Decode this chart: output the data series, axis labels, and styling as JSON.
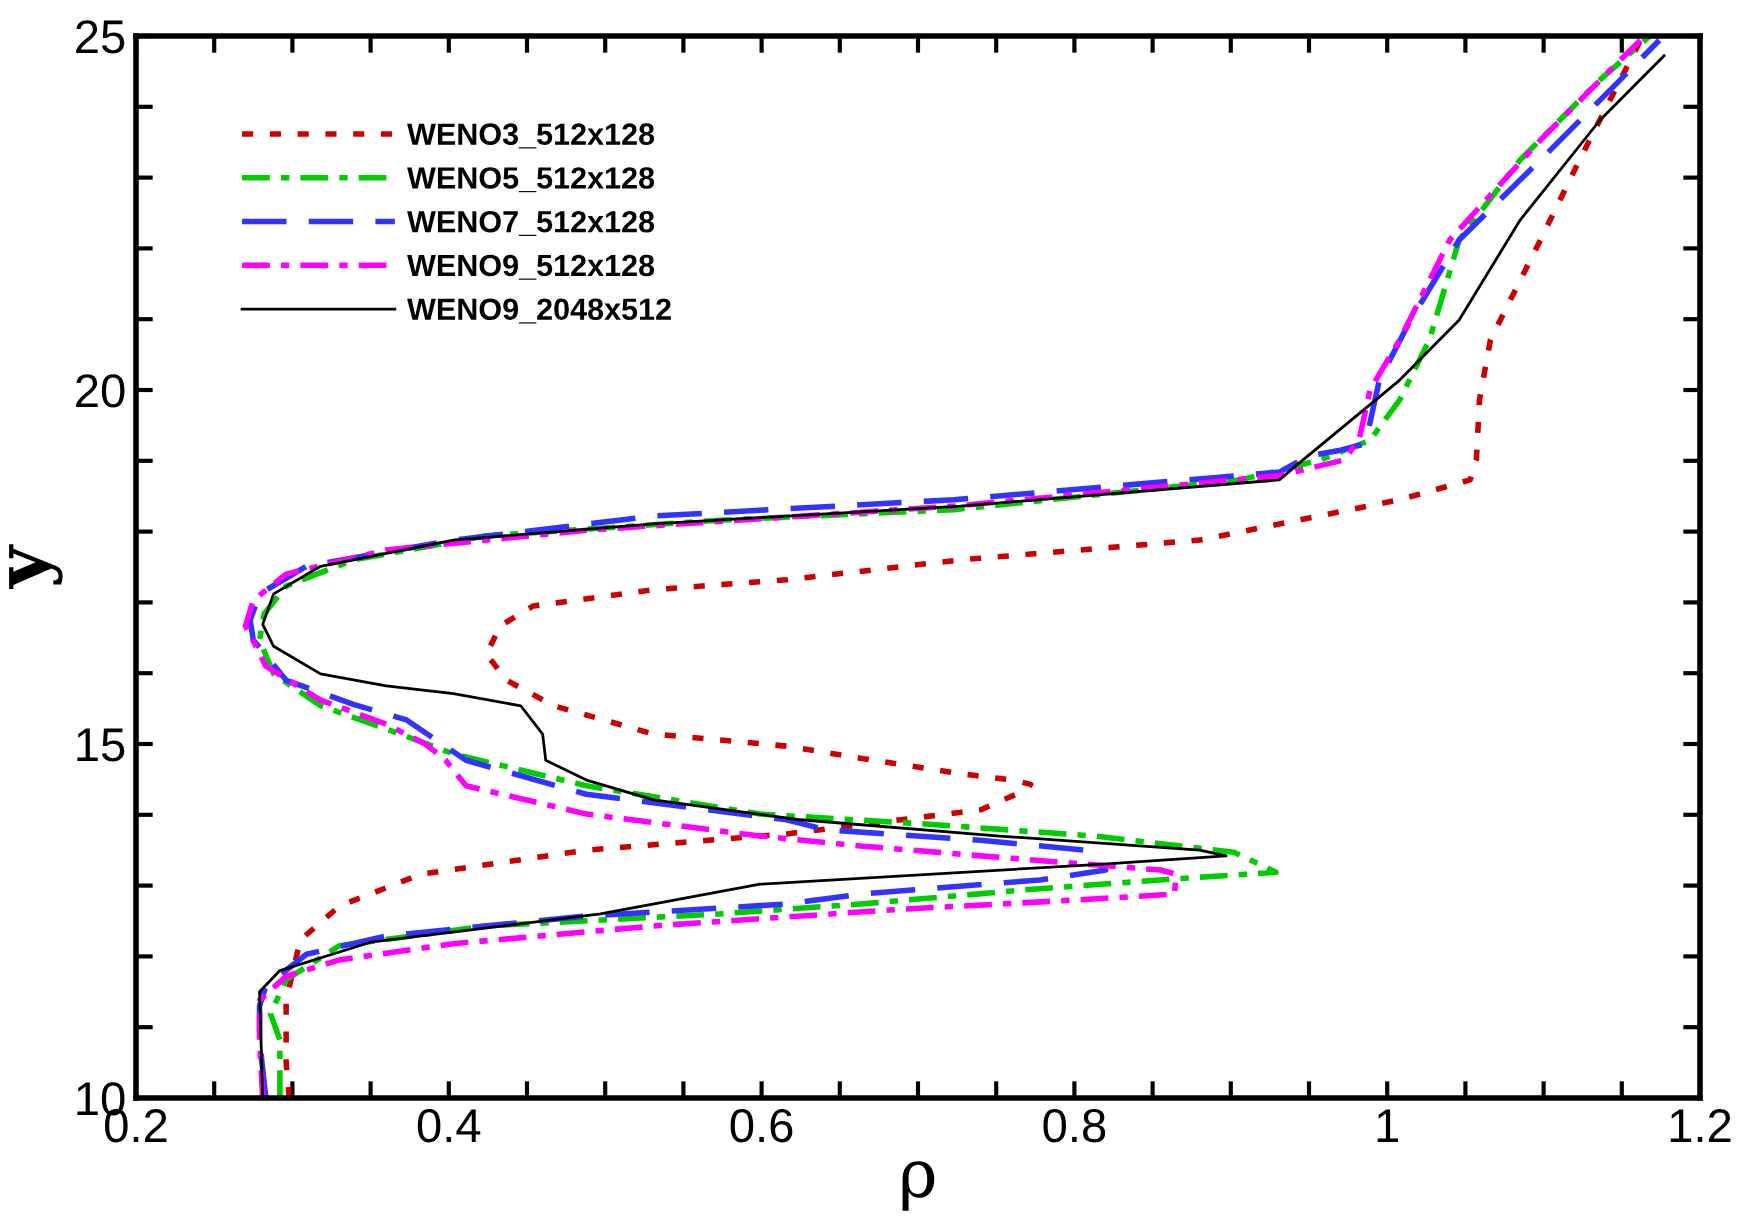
{
  "chart_data": {
    "type": "line",
    "xlabel": "ρ",
    "ylabel": "y",
    "xlim": [
      0.2,
      1.2
    ],
    "ylim": [
      10,
      25
    ],
    "xticks": [
      0.2,
      {
        "value": 0.25,
        "label": null
      },
      {
        "value": 0.3,
        "label": null
      },
      {
        "value": 0.35,
        "label": null
      },
      0.4,
      {
        "value": 0.45,
        "label": null
      },
      {
        "value": 0.5,
        "label": null
      },
      {
        "value": 0.55,
        "label": null
      },
      0.6,
      {
        "value": 0.65,
        "label": null
      },
      {
        "value": 0.7,
        "label": null
      },
      {
        "value": 0.75,
        "label": null
      },
      0.8,
      {
        "value": 0.85,
        "label": null
      },
      {
        "value": 0.9,
        "label": null
      },
      {
        "value": 0.95,
        "label": null
      },
      1,
      {
        "value": 1.05,
        "label": null
      },
      {
        "value": 1.1,
        "label": null
      },
      {
        "value": 1.15,
        "label": null
      },
      1.2
    ],
    "yticks": [
      10,
      {
        "value": 11,
        "label": null
      },
      {
        "value": 12,
        "label": null
      },
      {
        "value": 13,
        "label": null
      },
      {
        "value": 14,
        "label": null
      },
      15,
      {
        "value": 16,
        "label": null
      },
      {
        "value": 17,
        "label": null
      },
      {
        "value": 18,
        "label": null
      },
      {
        "value": 19,
        "label": null
      },
      20,
      {
        "value": 21,
        "label": null
      },
      {
        "value": 22,
        "label": null
      },
      {
        "value": 23,
        "label": null
      },
      {
        "value": 24,
        "label": null
      },
      25
    ],
    "grid": false,
    "legend": "top left",
    "marker": "none",
    "series": [
      {
        "name": "WENO3_512x128",
        "color": "#cc0000",
        "line_style": "dotted",
        "x": [
          0.298,
          0.296,
          0.296,
          0.305,
          0.33,
          0.382,
          0.488,
          0.616,
          0.74,
          0.769,
          0.772,
          0.761,
          0.727,
          0.663,
          0.616,
          0.531,
          0.467,
          0.437,
          0.424,
          0.433,
          0.454,
          0.531,
          0.616,
          0.727,
          0.88,
          1.008,
          1.053,
          1.057,
          1.059,
          1.066,
          1.098,
          1.123,
          1.149,
          1.162
        ],
        "values": [
          10,
          10.5,
          11.38,
          12.23,
          12.71,
          13.16,
          13.5,
          13.73,
          14.07,
          14.35,
          14.43,
          14.49,
          14.58,
          14.8,
          14.97,
          15.14,
          15.54,
          15.9,
          16.27,
          16.67,
          16.95,
          17.18,
          17.32,
          17.6,
          17.88,
          18.45,
          18.73,
          19.01,
          19.86,
          20.71,
          22.12,
          23.25,
          24.38,
          24.94
        ]
      },
      {
        "name": "WENO5_512x128",
        "color": "#00cc00",
        "line_style": "dash-dot",
        "x": [
          0.292,
          0.292,
          0.286,
          0.296,
          0.33,
          0.424,
          0.573,
          0.663,
          0.769,
          0.855,
          0.929,
          0.902,
          0.813,
          0.705,
          0.599,
          0.488,
          0.403,
          0.369,
          0.318,
          0.288,
          0.279,
          0.282,
          0.296,
          0.339,
          0.424,
          0.573,
          0.723,
          0.906,
          0.957,
          0.989,
          1.008,
          1.027,
          1.046,
          1.085,
          1.136,
          1.168
        ],
        "values": [
          10,
          10.82,
          11.19,
          11.67,
          12.15,
          12.43,
          12.6,
          12.74,
          12.94,
          13.08,
          13.19,
          13.47,
          13.7,
          13.87,
          14.01,
          14.41,
          14.86,
          15.14,
          15.54,
          15.99,
          16.47,
          16.84,
          17.23,
          17.6,
          17.94,
          18.16,
          18.31,
          18.73,
          19.01,
          19.29,
          19.86,
          20.71,
          22.12,
          23.25,
          24.38,
          25
        ]
      },
      {
        "name": "WENO7_512x128",
        "color": "#3333ff",
        "line_style": "dashed",
        "x": [
          0.283,
          0.279,
          0.279,
          0.283,
          0.309,
          0.36,
          0.488,
          0.616,
          0.663,
          0.778,
          0.82,
          0.807,
          0.74,
          0.641,
          0.616,
          0.488,
          0.411,
          0.373,
          0.339,
          0.296,
          0.275,
          0.273,
          0.279,
          0.309,
          0.403,
          0.531,
          0.723,
          0.931,
          0.95,
          0.97,
          0.986,
          0.995,
          1.015,
          1.046,
          1.098,
          1.149,
          1.174
        ],
        "values": [
          10,
          10.82,
          11.3,
          11.58,
          12.03,
          12.29,
          12.57,
          12.74,
          12.88,
          13.08,
          13.22,
          13.5,
          13.64,
          13.79,
          13.93,
          14.29,
          14.77,
          15.34,
          15.56,
          15.9,
          16.47,
          16.75,
          17.12,
          17.51,
          17.88,
          18.22,
          18.45,
          18.84,
          19.07,
          19.15,
          19.24,
          20.14,
          20.99,
          22.12,
          23.25,
          24.38,
          24.94
        ]
      },
      {
        "name": "WENO9_512x128",
        "color": "#ff00ff",
        "line_style": "dash-dot",
        "x": [
          0.281,
          0.279,
          0.279,
          0.296,
          0.33,
          0.403,
          0.531,
          0.685,
          0.804,
          0.864,
          0.865,
          0.855,
          0.74,
          0.663,
          0.599,
          0.488,
          0.411,
          0.398,
          0.385,
          0.36,
          0.318,
          0.283,
          0.27,
          0.275,
          0.296,
          0.36,
          0.488,
          0.723,
          0.931,
          0.972,
          0.982,
          0.989,
          1.008,
          1.04,
          1.098,
          1.149,
          1.162
        ],
        "values": [
          10,
          10.82,
          11.38,
          11.72,
          11.95,
          12.18,
          12.43,
          12.66,
          12.8,
          12.88,
          13.16,
          13.22,
          13.42,
          13.56,
          13.7,
          14.01,
          14.41,
          14.77,
          15,
          15.28,
          15.62,
          16.1,
          16.67,
          17.03,
          17.4,
          17.74,
          18.02,
          18.36,
          18.79,
          19.01,
          19.29,
          20,
          20.71,
          22.12,
          23.53,
          24.66,
          24.94
        ]
      },
      {
        "name": "WENO9_2048x512",
        "color": "#000000",
        "line_style": "solid",
        "x": [
          0.281,
          0.279,
          0.292,
          0.35,
          0.497,
          0.599,
          0.816,
          0.897,
          0.88,
          0.752,
          0.625,
          0.531,
          0.488,
          0.462,
          0.46,
          0.446,
          0.403,
          0.36,
          0.318,
          0.288,
          0.281,
          0.288,
          0.318,
          0.403,
          0.531,
          0.727,
          0.931,
          0.946,
          1.008,
          1.046,
          1.085,
          1.136,
          1.177
        ],
        "values": [
          10,
          11.5,
          11.8,
          12.2,
          12.6,
          13.02,
          13.3,
          13.42,
          13.5,
          13.7,
          13.93,
          14.21,
          14.49,
          14.77,
          15.14,
          15.54,
          15.71,
          15.82,
          15.99,
          16.38,
          16.69,
          17.12,
          17.51,
          17.88,
          18.11,
          18.36,
          18.73,
          19.01,
          20.14,
          20.99,
          22.4,
          23.81,
          24.72
        ]
      }
    ]
  }
}
